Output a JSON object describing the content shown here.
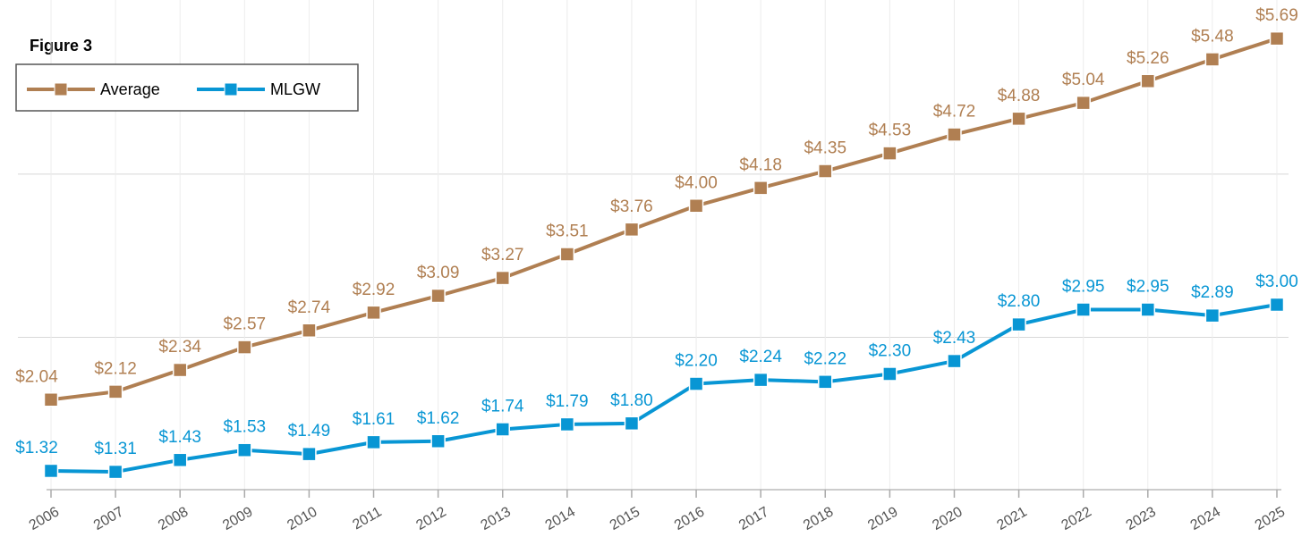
{
  "chart_data": {
    "type": "line",
    "title": "Figure 3",
    "categories": [
      "2006",
      "2007",
      "2008",
      "2009",
      "2010",
      "2011",
      "2012",
      "2013",
      "2014",
      "2015",
      "2016",
      "2017",
      "2018",
      "2019",
      "2020",
      "2021",
      "2022",
      "2023",
      "2024",
      "2025"
    ],
    "series": [
      {
        "name": "Average",
        "color": "#b07f52",
        "values": [
          2.04,
          2.12,
          2.34,
          2.57,
          2.74,
          2.92,
          3.09,
          3.27,
          3.51,
          3.76,
          4.0,
          4.18,
          4.35,
          4.53,
          4.72,
          4.88,
          5.04,
          5.26,
          5.48,
          5.69
        ],
        "value_labels": [
          "$2.04",
          "$2.12",
          "$2.34",
          "$2.57",
          "$2.74",
          "$2.92",
          "$3.09",
          "$3.27",
          "$3.51",
          "$3.76",
          "$4.00",
          "$4.18",
          "$4.35",
          "$4.53",
          "$4.72",
          "$4.88",
          "$5.04",
          "$5.26",
          "$5.48",
          "$5.69"
        ]
      },
      {
        "name": "MLGW",
        "color": "#0896d4",
        "values": [
          1.32,
          1.31,
          1.43,
          1.53,
          1.49,
          1.61,
          1.62,
          1.74,
          1.79,
          1.8,
          2.2,
          2.24,
          2.22,
          2.3,
          2.43,
          2.8,
          2.95,
          2.95,
          2.89,
          3.0
        ],
        "value_labels": [
          "$1.32",
          "$1.31",
          "$1.43",
          "$1.53",
          "$1.49",
          "$1.61",
          "$1.62",
          "$1.74",
          "$1.79",
          "$1.80",
          "$2.20",
          "$2.24",
          "$2.22",
          "$2.30",
          "$2.43",
          "$2.80",
          "$2.95",
          "$2.95",
          "$2.89",
          "$3.00"
        ]
      }
    ],
    "ylim": [
      1.13,
      6.08
    ],
    "yticks": [
      2.67,
      4.32
    ],
    "grid": true,
    "legend": "upper left"
  }
}
